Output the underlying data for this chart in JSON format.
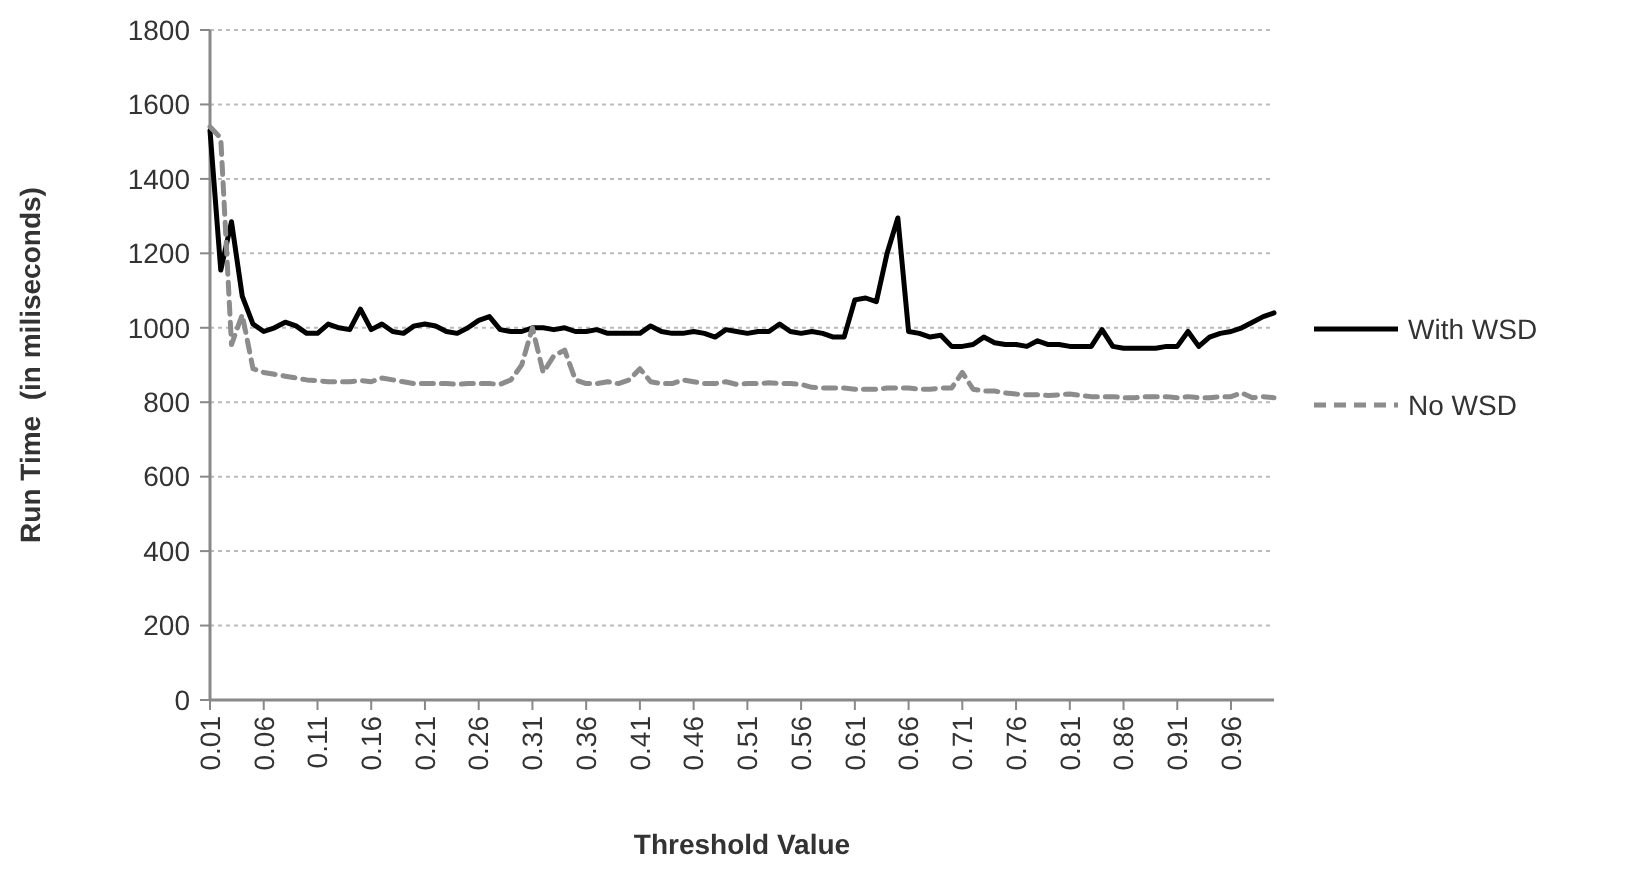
{
  "chart_data": {
    "type": "line",
    "xlabel": "Threshold Value",
    "ylabel": "Run Time  (in miliseconds)",
    "x": [
      0.01,
      0.02,
      0.03,
      0.04,
      0.05,
      0.06,
      0.07,
      0.08,
      0.09,
      0.1,
      0.11,
      0.12,
      0.13,
      0.14,
      0.15,
      0.16,
      0.17,
      0.18,
      0.19,
      0.2,
      0.21,
      0.22,
      0.23,
      0.24,
      0.25,
      0.26,
      0.27,
      0.28,
      0.29,
      0.3,
      0.31,
      0.32,
      0.33,
      0.34,
      0.35,
      0.36,
      0.37,
      0.38,
      0.39,
      0.4,
      0.41,
      0.42,
      0.43,
      0.44,
      0.45,
      0.46,
      0.47,
      0.48,
      0.49,
      0.5,
      0.51,
      0.52,
      0.53,
      0.54,
      0.55,
      0.56,
      0.57,
      0.58,
      0.59,
      0.6,
      0.61,
      0.62,
      0.63,
      0.64,
      0.65,
      0.66,
      0.67,
      0.68,
      0.69,
      0.7,
      0.71,
      0.72,
      0.73,
      0.74,
      0.75,
      0.76,
      0.77,
      0.78,
      0.79,
      0.8,
      0.81,
      0.82,
      0.83,
      0.84,
      0.85,
      0.86,
      0.87,
      0.88,
      0.89,
      0.9,
      0.91,
      0.92,
      0.93,
      0.94,
      0.95,
      0.96,
      0.97,
      0.98,
      0.99,
      1.0
    ],
    "series": [
      {
        "name": "With WSD",
        "color": "#000000",
        "line_style": "solid",
        "values": [
          1530,
          1155,
          1285,
          1085,
          1010,
          990,
          1000,
          1015,
          1005,
          985,
          985,
          1010,
          1000,
          995,
          1050,
          995,
          1010,
          990,
          985,
          1005,
          1010,
          1005,
          990,
          985,
          1000,
          1020,
          1030,
          995,
          990,
          990,
          1000,
          1000,
          995,
          1000,
          990,
          990,
          995,
          985,
          985,
          985,
          985,
          1005,
          990,
          985,
          985,
          990,
          985,
          975,
          995,
          990,
          985,
          990,
          990,
          1010,
          990,
          985,
          990,
          985,
          975,
          975,
          1075,
          1080,
          1070,
          1200,
          1295,
          990,
          985,
          975,
          980,
          950,
          950,
          955,
          975,
          960,
          955,
          955,
          950,
          965,
          955,
          955,
          950,
          950,
          950,
          995,
          950,
          945,
          945,
          945,
          945,
          950,
          950,
          990,
          950,
          975,
          985,
          990,
          1000,
          1015,
          1030,
          1040
        ]
      },
      {
        "name": "No WSD",
        "color": "#8c8c8c",
        "line_style": "dashed",
        "values": [
          1540,
          1510,
          955,
          1035,
          890,
          880,
          875,
          870,
          865,
          860,
          858,
          855,
          855,
          855,
          858,
          855,
          865,
          860,
          855,
          850,
          850,
          850,
          850,
          848,
          850,
          850,
          850,
          848,
          860,
          900,
          1000,
          880,
          925,
          940,
          860,
          850,
          850,
          855,
          850,
          860,
          890,
          855,
          850,
          850,
          860,
          855,
          850,
          850,
          855,
          848,
          850,
          850,
          852,
          850,
          850,
          848,
          840,
          838,
          838,
          838,
          835,
          835,
          835,
          838,
          838,
          838,
          835,
          835,
          838,
          838,
          880,
          835,
          830,
          830,
          825,
          822,
          820,
          820,
          818,
          820,
          822,
          818,
          815,
          815,
          815,
          812,
          812,
          815,
          815,
          815,
          812,
          815,
          812,
          812,
          815,
          815,
          825,
          812,
          815,
          812
        ]
      }
    ],
    "xlim": [
      0.01,
      1.0
    ],
    "xticks": [
      0.01,
      0.06,
      0.11,
      0.16,
      0.21,
      0.26,
      0.31,
      0.36,
      0.41,
      0.46,
      0.51,
      0.56,
      0.61,
      0.66,
      0.71,
      0.76,
      0.81,
      0.86,
      0.91,
      0.96
    ],
    "ylim": [
      0,
      1800
    ],
    "yticks": [
      0,
      200,
      400,
      600,
      800,
      1000,
      1200,
      1400,
      1600,
      1800
    ],
    "grid": "y",
    "legend": "right",
    "marker": "none"
  }
}
